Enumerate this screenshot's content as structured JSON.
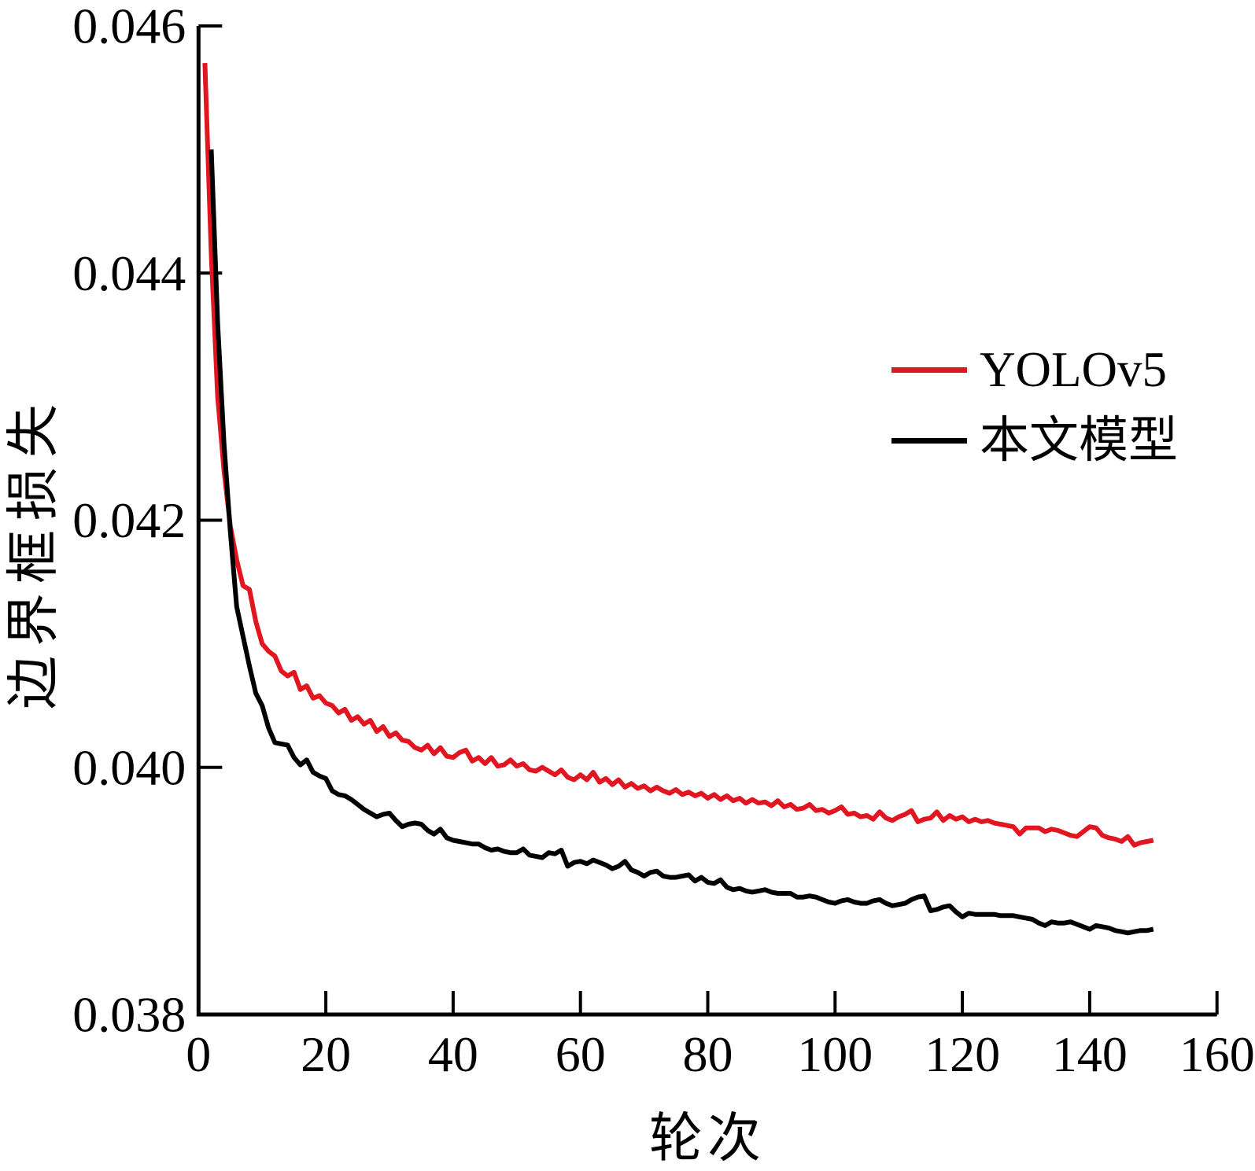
{
  "figure": {
    "background": "#ffffff",
    "axis_color": "#000000"
  },
  "chart_data": {
    "type": "line",
    "title": "",
    "xlabel": "轮次",
    "ylabel": "边界框损失",
    "xlim": [
      0,
      160
    ],
    "ylim": [
      0.038,
      0.046
    ],
    "x_ticks": [
      0,
      20,
      40,
      60,
      80,
      100,
      120,
      140,
      160
    ],
    "x_tick_labels": [
      "0",
      "20",
      "40",
      "60",
      "80",
      "100",
      "120",
      "140",
      "160"
    ],
    "y_ticks": [
      0.038,
      0.04,
      0.042,
      0.044,
      0.046
    ],
    "y_tick_labels": [
      "0.038",
      "0.040",
      "0.042",
      "0.044",
      "0.046"
    ],
    "grid": false,
    "legend_position": "center right",
    "series": [
      {
        "name": "YOLOv5",
        "color": "#e11620",
        "points": [
          [
            1,
            0.0457
          ],
          [
            2,
            0.04415
          ],
          [
            3,
            0.043
          ],
          [
            4,
            0.0424
          ],
          [
            5,
            0.04195
          ],
          [
            6,
            0.04168
          ],
          [
            7,
            0.04147
          ],
          [
            8,
            0.04144
          ],
          [
            9,
            0.04118
          ],
          [
            10,
            0.041
          ],
          [
            11,
            0.04094
          ],
          [
            12,
            0.0409
          ],
          [
            13,
            0.04078
          ],
          [
            14,
            0.04074
          ],
          [
            15,
            0.04077
          ],
          [
            16,
            0.04063
          ],
          [
            17,
            0.04066
          ],
          [
            18,
            0.04056
          ],
          [
            19,
            0.04058
          ],
          [
            20,
            0.04052
          ],
          [
            21,
            0.0405
          ],
          [
            22,
            0.04044
          ],
          [
            23,
            0.04047
          ],
          [
            24,
            0.04038
          ],
          [
            25,
            0.04041
          ],
          [
            26,
            0.04035
          ],
          [
            27,
            0.04038
          ],
          [
            28,
            0.04029
          ],
          [
            29,
            0.04033
          ],
          [
            30,
            0.04025
          ],
          [
            31,
            0.04028
          ],
          [
            32,
            0.04022
          ],
          [
            33,
            0.04021
          ],
          [
            34,
            0.04016
          ],
          [
            35,
            0.04014
          ],
          [
            36,
            0.04018
          ],
          [
            37,
            0.04011
          ],
          [
            38,
            0.04016
          ],
          [
            39,
            0.04009
          ],
          [
            40,
            0.04008
          ],
          [
            41,
            0.04012
          ],
          [
            42,
            0.04014
          ],
          [
            43,
            0.04005
          ],
          [
            44,
            0.04008
          ],
          [
            45,
            0.04003
          ],
          [
            46,
            0.04008
          ],
          [
            47,
            0.04001
          ],
          [
            48,
            0.04002
          ],
          [
            49,
            0.04006
          ],
          [
            50,
            0.04001
          ],
          [
            51,
            0.04003
          ],
          [
            52,
            0.03998
          ],
          [
            53,
            0.03997
          ],
          [
            54,
            0.04
          ],
          [
            55,
            0.03997
          ],
          [
            56,
            0.03994
          ],
          [
            57,
            0.03998
          ],
          [
            58,
            0.03992
          ],
          [
            59,
            0.0399
          ],
          [
            60,
            0.03994
          ],
          [
            61,
            0.0399
          ],
          [
            62,
            0.03996
          ],
          [
            63,
            0.03988
          ],
          [
            64,
            0.03991
          ],
          [
            65,
            0.03986
          ],
          [
            66,
            0.0399
          ],
          [
            67,
            0.03984
          ],
          [
            68,
            0.03987
          ],
          [
            69,
            0.03983
          ],
          [
            70,
            0.03985
          ],
          [
            71,
            0.03981
          ],
          [
            72,
            0.03984
          ],
          [
            73,
            0.03981
          ],
          [
            74,
            0.03979
          ],
          [
            75,
            0.03982
          ],
          [
            76,
            0.03978
          ],
          [
            77,
            0.0398
          ],
          [
            78,
            0.03977
          ],
          [
            79,
            0.03979
          ],
          [
            80,
            0.03975
          ],
          [
            81,
            0.03978
          ],
          [
            82,
            0.03974
          ],
          [
            83,
            0.03977
          ],
          [
            84,
            0.03973
          ],
          [
            85,
            0.03975
          ],
          [
            86,
            0.03971
          ],
          [
            87,
            0.03974
          ],
          [
            88,
            0.03971
          ],
          [
            89,
            0.03972
          ],
          [
            90,
            0.03969
          ],
          [
            91,
            0.03973
          ],
          [
            92,
            0.03968
          ],
          [
            93,
            0.0397
          ],
          [
            94,
            0.03966
          ],
          [
            95,
            0.03967
          ],
          [
            96,
            0.0397
          ],
          [
            97,
            0.03965
          ],
          [
            98,
            0.03966
          ],
          [
            99,
            0.03963
          ],
          [
            100,
            0.03965
          ],
          [
            101,
            0.03968
          ],
          [
            102,
            0.03962
          ],
          [
            103,
            0.03963
          ],
          [
            104,
            0.0396
          ],
          [
            105,
            0.03961
          ],
          [
            106,
            0.03958
          ],
          [
            107,
            0.03964
          ],
          [
            108,
            0.03959
          ],
          [
            109,
            0.03957
          ],
          [
            110,
            0.0396
          ],
          [
            111,
            0.03962
          ],
          [
            112,
            0.03965
          ],
          [
            113,
            0.03956
          ],
          [
            114,
            0.03958
          ],
          [
            115,
            0.03959
          ],
          [
            116,
            0.03964
          ],
          [
            117,
            0.03957
          ],
          [
            118,
            0.03961
          ],
          [
            119,
            0.03958
          ],
          [
            120,
            0.0396
          ],
          [
            121,
            0.03956
          ],
          [
            122,
            0.03958
          ],
          [
            123,
            0.03956
          ],
          [
            124,
            0.03957
          ],
          [
            125,
            0.03955
          ],
          [
            126,
            0.03954
          ],
          [
            127,
            0.03953
          ],
          [
            128,
            0.03952
          ],
          [
            129,
            0.03946
          ],
          [
            130,
            0.03951
          ],
          [
            131,
            0.03951
          ],
          [
            132,
            0.03951
          ],
          [
            133,
            0.03948
          ],
          [
            134,
            0.0395
          ],
          [
            135,
            0.03949
          ],
          [
            136,
            0.03947
          ],
          [
            137,
            0.03945
          ],
          [
            138,
            0.03944
          ],
          [
            139,
            0.03948
          ],
          [
            140,
            0.03952
          ],
          [
            141,
            0.03951
          ],
          [
            142,
            0.03945
          ],
          [
            143,
            0.03943
          ],
          [
            144,
            0.03942
          ],
          [
            145,
            0.0394
          ],
          [
            146,
            0.03944
          ],
          [
            147,
            0.03937
          ],
          [
            148,
            0.03939
          ],
          [
            149,
            0.0394
          ],
          [
            150,
            0.03941
          ]
        ]
      },
      {
        "name": "本文模型",
        "color": "#000000",
        "points": [
          [
            2,
            0.045
          ],
          [
            3,
            0.0436
          ],
          [
            4,
            0.04262
          ],
          [
            5,
            0.0419
          ],
          [
            6,
            0.0413
          ],
          [
            7,
            0.04106
          ],
          [
            8,
            0.04082
          ],
          [
            9,
            0.0406
          ],
          [
            10,
            0.0405
          ],
          [
            11,
            0.04032
          ],
          [
            12,
            0.0402
          ],
          [
            13,
            0.04019
          ],
          [
            14,
            0.04018
          ],
          [
            15,
            0.04008
          ],
          [
            16,
            0.04002
          ],
          [
            17,
            0.04006
          ],
          [
            18,
            0.03996
          ],
          [
            19,
            0.03993
          ],
          [
            20,
            0.03991
          ],
          [
            21,
            0.03981
          ],
          [
            22,
            0.03978
          ],
          [
            23,
            0.03977
          ],
          [
            24,
            0.03974
          ],
          [
            25,
            0.0397
          ],
          [
            26,
            0.03966
          ],
          [
            27,
            0.03963
          ],
          [
            28,
            0.0396
          ],
          [
            29,
            0.03962
          ],
          [
            30,
            0.03963
          ],
          [
            31,
            0.03957
          ],
          [
            32,
            0.03952
          ],
          [
            33,
            0.03954
          ],
          [
            34,
            0.03955
          ],
          [
            35,
            0.03954
          ],
          [
            36,
            0.03949
          ],
          [
            37,
            0.03946
          ],
          [
            38,
            0.0395
          ],
          [
            39,
            0.03943
          ],
          [
            40,
            0.03941
          ],
          [
            41,
            0.0394
          ],
          [
            42,
            0.03939
          ],
          [
            43,
            0.03938
          ],
          [
            44,
            0.03938
          ],
          [
            45,
            0.03935
          ],
          [
            46,
            0.03933
          ],
          [
            47,
            0.03934
          ],
          [
            48,
            0.03932
          ],
          [
            49,
            0.03931
          ],
          [
            50,
            0.03931
          ],
          [
            51,
            0.03934
          ],
          [
            52,
            0.03929
          ],
          [
            53,
            0.03928
          ],
          [
            54,
            0.03927
          ],
          [
            55,
            0.03931
          ],
          [
            56,
            0.0393
          ],
          [
            57,
            0.03933
          ],
          [
            58,
            0.0392
          ],
          [
            59,
            0.03923
          ],
          [
            60,
            0.03924
          ],
          [
            61,
            0.03922
          ],
          [
            62,
            0.03925
          ],
          [
            63,
            0.03923
          ],
          [
            64,
            0.03921
          ],
          [
            65,
            0.03918
          ],
          [
            66,
            0.0392
          ],
          [
            67,
            0.03924
          ],
          [
            68,
            0.03917
          ],
          [
            69,
            0.03915
          ],
          [
            70,
            0.03912
          ],
          [
            71,
            0.03915
          ],
          [
            72,
            0.03916
          ],
          [
            73,
            0.03912
          ],
          [
            74,
            0.03911
          ],
          [
            75,
            0.03911
          ],
          [
            76,
            0.03912
          ],
          [
            77,
            0.03913
          ],
          [
            78,
            0.03908
          ],
          [
            79,
            0.03911
          ],
          [
            80,
            0.03907
          ],
          [
            81,
            0.03906
          ],
          [
            82,
            0.03909
          ],
          [
            83,
            0.03903
          ],
          [
            84,
            0.03901
          ],
          [
            85,
            0.03902
          ],
          [
            86,
            0.039
          ],
          [
            87,
            0.03899
          ],
          [
            88,
            0.039
          ],
          [
            89,
            0.03901
          ],
          [
            90,
            0.03899
          ],
          [
            91,
            0.03898
          ],
          [
            92,
            0.03898
          ],
          [
            93,
            0.03898
          ],
          [
            94,
            0.03895
          ],
          [
            95,
            0.03895
          ],
          [
            96,
            0.03896
          ],
          [
            97,
            0.03895
          ],
          [
            98,
            0.03893
          ],
          [
            99,
            0.03891
          ],
          [
            100,
            0.0389
          ],
          [
            101,
            0.03892
          ],
          [
            102,
            0.03893
          ],
          [
            103,
            0.03891
          ],
          [
            104,
            0.0389
          ],
          [
            105,
            0.0389
          ],
          [
            106,
            0.03892
          ],
          [
            107,
            0.03893
          ],
          [
            108,
            0.0389
          ],
          [
            109,
            0.03888
          ],
          [
            110,
            0.03889
          ],
          [
            111,
            0.0389
          ],
          [
            112,
            0.03893
          ],
          [
            113,
            0.03895
          ],
          [
            114,
            0.03896
          ],
          [
            115,
            0.03884
          ],
          [
            116,
            0.03885
          ],
          [
            117,
            0.03887
          ],
          [
            118,
            0.03888
          ],
          [
            119,
            0.03883
          ],
          [
            120,
            0.03879
          ],
          [
            121,
            0.03882
          ],
          [
            122,
            0.03881
          ],
          [
            123,
            0.03881
          ],
          [
            124,
            0.03881
          ],
          [
            125,
            0.03881
          ],
          [
            126,
            0.0388
          ],
          [
            127,
            0.0388
          ],
          [
            128,
            0.0388
          ],
          [
            129,
            0.03879
          ],
          [
            130,
            0.03878
          ],
          [
            131,
            0.03877
          ],
          [
            132,
            0.03874
          ],
          [
            133,
            0.03872
          ],
          [
            134,
            0.03875
          ],
          [
            135,
            0.03874
          ],
          [
            136,
            0.03874
          ],
          [
            137,
            0.03875
          ],
          [
            138,
            0.03873
          ],
          [
            139,
            0.03871
          ],
          [
            140,
            0.03869
          ],
          [
            141,
            0.03872
          ],
          [
            142,
            0.03871
          ],
          [
            143,
            0.0387
          ],
          [
            144,
            0.03868
          ],
          [
            145,
            0.03867
          ],
          [
            146,
            0.03866
          ],
          [
            147,
            0.03867
          ],
          [
            148,
            0.03868
          ],
          [
            149,
            0.03868
          ],
          [
            150,
            0.03869
          ]
        ]
      }
    ]
  }
}
